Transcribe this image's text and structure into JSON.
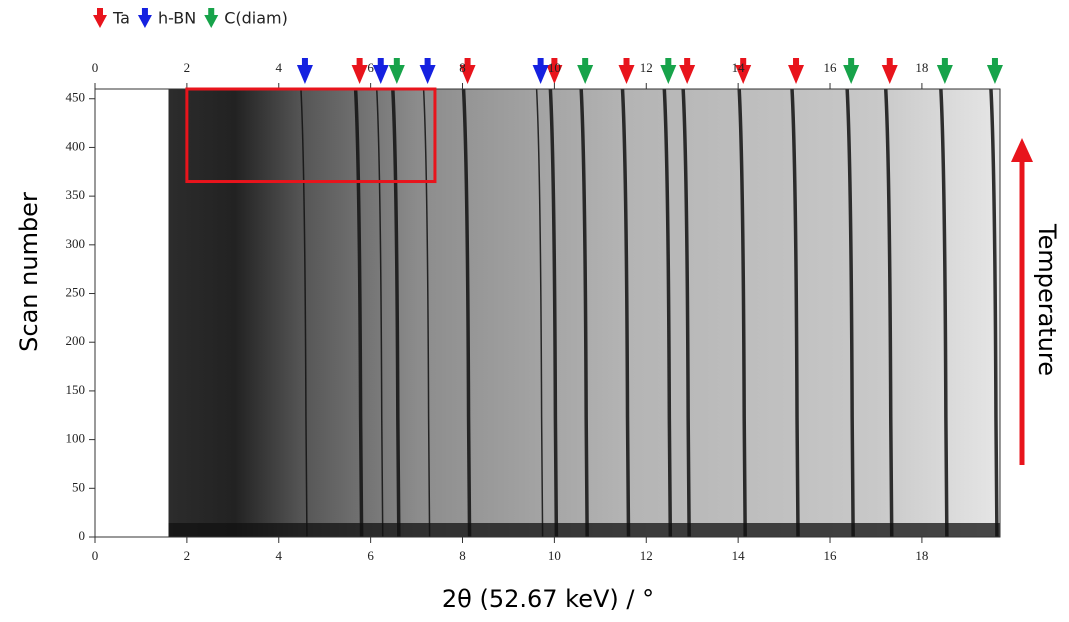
{
  "chart_data": {
    "type": "diffraction",
    "xlabel": "2θ (52.67 keV) / °",
    "ylabel": "Scan number",
    "annotation": "Temperature",
    "xlim": [
      0,
      19.7
    ],
    "ylim": [
      0,
      460
    ],
    "xticks": [
      0,
      2,
      4,
      6,
      8,
      10,
      12,
      14,
      16,
      18
    ],
    "yticks": [
      0,
      50,
      100,
      150,
      200,
      250,
      300,
      350,
      400,
      450
    ],
    "data_start": 1.6,
    "highlight": {
      "xlim": [
        2,
        7.4
      ],
      "ylim": [
        365,
        460
      ],
      "color": "#e8141c"
    },
    "series": [
      {
        "name": "Ta",
        "color": "#e8141c",
        "peaks": [
          5.76,
          8.11,
          10.0,
          11.57,
          12.89,
          14.11,
          15.26,
          17.3
        ]
      },
      {
        "name": "h-BN",
        "color": "#1521e0",
        "peaks": [
          4.57,
          6.22,
          7.24,
          9.7
        ]
      },
      {
        "name": "C(diam)",
        "color": "#17a34a",
        "peaks": [
          6.57,
          10.67,
          12.48,
          16.46,
          18.5,
          19.59
        ]
      }
    ]
  }
}
